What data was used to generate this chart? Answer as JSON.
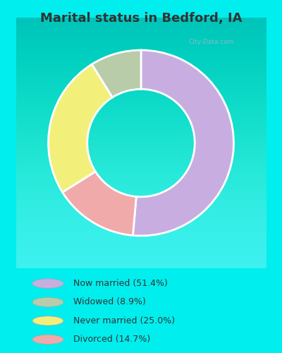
{
  "title": "Marital status in Bedford, IA",
  "slices": [
    51.4,
    14.7,
    25.0,
    8.9
  ],
  "colors": [
    "#c8aee0",
    "#f0aaaa",
    "#f2f07a",
    "#b8ccaa"
  ],
  "labels": [
    "Now married (51.4%)",
    "Widowed (8.9%)",
    "Never married (25.0%)",
    "Divorced (14.7%)"
  ],
  "legend_colors": [
    "#c8aee0",
    "#b8ccaa",
    "#f2f07a",
    "#f0aaaa"
  ],
  "legend_labels": [
    "Now married (51.4%)",
    "Widowed (8.9%)",
    "Never married (25.0%)",
    "Divorced (14.7%)"
  ],
  "outer_bg": "#00eeee",
  "chart_bg_top": "#e8f5ee",
  "chart_bg_bottom": "#c8e8d8",
  "title_fontsize": 13,
  "title_color": "#333333",
  "watermark": "City-Data.com",
  "watermark_color": "#99bbcc"
}
